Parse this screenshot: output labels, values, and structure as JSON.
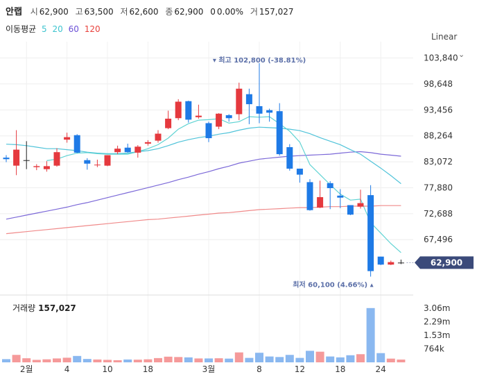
{
  "header": {
    "name": "안랩",
    "open_label": "시",
    "open": "62,900",
    "high_label": "고",
    "high": "63,500",
    "low_label": "저",
    "low": "62,600",
    "close_label": "종",
    "close": "62,900",
    "change": "0",
    "change_pct": "0.00%",
    "volume_label": "거",
    "volume": "157,027"
  },
  "ma_legend": {
    "title": "이동평균",
    "periods": [
      {
        "label": "5",
        "color": "#3ec4cf"
      },
      {
        "label": "20",
        "color": "#3ec4cf"
      },
      {
        "label": "60",
        "color": "#6a4fd6"
      },
      {
        "label": "120",
        "color": "#e8413c"
      }
    ]
  },
  "scale_mode": "Linear",
  "colors": {
    "up": "#e5393e",
    "down": "#1e7ae6",
    "ma5": "#5fd3d3",
    "ma20": "#4fc3d9",
    "ma60": "#7b68d8",
    "ma120": "#f08a8a",
    "vol_up": "#f59a9a",
    "vol_down": "#8ab8f0",
    "current_tag": "#3b4a7a"
  },
  "current_price_tag": "62,900",
  "annotations": {
    "high": "최고 102,800 (-38.81%)",
    "low": "최저 60,100 (4.66%)"
  },
  "volume_panel": {
    "label": "거래량",
    "value": "157,027",
    "ticks": [
      "3.06m",
      "2.29m",
      "1.53m",
      "764k"
    ]
  },
  "chart_data": {
    "type": "candlestick",
    "ylim": [
      58500,
      106000
    ],
    "y_ticks": [
      "103,840",
      "98,648",
      "93,456",
      "88,264",
      "83,072",
      "77,880",
      "72,688",
      "67,496"
    ],
    "x_ticks": [
      "2월",
      "4",
      "10",
      "18",
      "3월",
      "8",
      "12",
      "18",
      "24"
    ],
    "x_tick_index": [
      2,
      6,
      10,
      14,
      20,
      25,
      29,
      33,
      37
    ],
    "candles": [
      {
        "o": 83900,
        "h": 84400,
        "c": 83600,
        "l": 83000
      },
      {
        "o": 82300,
        "h": 89400,
        "c": 85500,
        "l": 80400
      },
      {
        "o": 83400,
        "h": 87200,
        "c": 83400,
        "l": 81600
      },
      {
        "o": 82000,
        "h": 82600,
        "c": 82200,
        "l": 81400
      },
      {
        "o": 81600,
        "h": 83200,
        "c": 82200,
        "l": 81100
      },
      {
        "o": 82300,
        "h": 85800,
        "c": 85000,
        "l": 82100
      },
      {
        "o": 87500,
        "h": 88900,
        "c": 88000,
        "l": 86900
      },
      {
        "o": 88400,
        "h": 88600,
        "c": 84900,
        "l": 84800
      },
      {
        "o": 83400,
        "h": 83800,
        "c": 82700,
        "l": 81500
      },
      {
        "o": 82400,
        "h": 83500,
        "c": 82500,
        "l": 82000
      },
      {
        "o": 82300,
        "h": 84400,
        "c": 84400,
        "l": 82200
      },
      {
        "o": 85000,
        "h": 86300,
        "c": 85700,
        "l": 84600
      },
      {
        "o": 85900,
        "h": 86700,
        "c": 85000,
        "l": 84900
      },
      {
        "o": 84900,
        "h": 86400,
        "c": 86100,
        "l": 83900
      },
      {
        "o": 86700,
        "h": 87400,
        "c": 87000,
        "l": 86300
      },
      {
        "o": 87300,
        "h": 89400,
        "c": 88700,
        "l": 86900
      },
      {
        "o": 89800,
        "h": 93300,
        "c": 91700,
        "l": 89600
      },
      {
        "o": 91800,
        "h": 95600,
        "c": 95100,
        "l": 91400
      },
      {
        "o": 95200,
        "h": 95300,
        "c": 91500,
        "l": 90900
      },
      {
        "o": 92000,
        "h": 94500,
        "c": 92300,
        "l": 91700
      },
      {
        "o": 90800,
        "h": 91100,
        "c": 87800,
        "l": 87000
      },
      {
        "o": 90100,
        "h": 92800,
        "c": 92700,
        "l": 89600
      },
      {
        "o": 92400,
        "h": 92600,
        "c": 91800,
        "l": 91100
      },
      {
        "o": 92600,
        "h": 98900,
        "c": 97700,
        "l": 91400
      },
      {
        "o": 96600,
        "h": 97700,
        "c": 94600,
        "l": 90600
      },
      {
        "o": 94200,
        "h": 102800,
        "c": 92700,
        "l": 90800
      },
      {
        "o": 93400,
        "h": 93700,
        "c": 92900,
        "l": 91100
      },
      {
        "o": 93200,
        "h": 94800,
        "c": 84600,
        "l": 84300
      },
      {
        "o": 86000,
        "h": 86600,
        "c": 81700,
        "l": 81300
      },
      {
        "o": 81700,
        "h": 81700,
        "c": 80500,
        "l": 78900
      },
      {
        "o": 79000,
        "h": 79600,
        "c": 73400,
        "l": 73300
      },
      {
        "o": 73900,
        "h": 79300,
        "c": 76000,
        "l": 73800
      },
      {
        "o": 78800,
        "h": 79200,
        "c": 77800,
        "l": 73600
      },
      {
        "o": 76300,
        "h": 77600,
        "c": 75900,
        "l": 73800
      },
      {
        "o": 74400,
        "h": 74400,
        "c": 72500,
        "l": 72400
      },
      {
        "o": 74100,
        "h": 77500,
        "c": 74800,
        "l": 73700
      },
      {
        "o": 76400,
        "h": 78400,
        "c": 61200,
        "l": 60100
      },
      {
        "o": 64100,
        "h": 64100,
        "c": 62500,
        "l": 62400
      },
      {
        "o": 62500,
        "h": 63300,
        "c": 63000,
        "l": 62400
      },
      {
        "o": 62900,
        "h": 63500,
        "c": 62900,
        "l": 62600
      }
    ],
    "ma5": [
      null,
      null,
      null,
      null,
      83300,
      83600,
      84300,
      84800,
      84900,
      84700,
      84600,
      84600,
      84600,
      85100,
      85700,
      86500,
      87800,
      89600,
      90700,
      91400,
      91500,
      91700,
      90800,
      91100,
      92100,
      92000,
      92100,
      90700,
      89200,
      87000,
      82500,
      80500,
      78500,
      76600,
      75400,
      75600,
      70900,
      68800,
      66700,
      64900
    ],
    "ma20": [
      86600,
      86500,
      86300,
      86000,
      85700,
      85700,
      85500,
      85300,
      85000,
      84800,
      84700,
      84700,
      84800,
      85100,
      85300,
      85700,
      86300,
      87000,
      87500,
      87900,
      88200,
      88600,
      88900,
      89400,
      89800,
      90000,
      89900,
      89800,
      89600,
      89300,
      88700,
      87900,
      87200,
      86500,
      85500,
      84600,
      83200,
      81800,
      80300,
      78700
    ],
    "ma60": [
      71600,
      72000,
      72400,
      72800,
      73200,
      73600,
      74000,
      74500,
      74900,
      75400,
      75900,
      76400,
      76900,
      77400,
      77900,
      78400,
      78900,
      79500,
      80000,
      80600,
      81100,
      81700,
      82200,
      82800,
      83200,
      83600,
      83800,
      84000,
      84200,
      84300,
      84400,
      84500,
      84600,
      84800,
      85000,
      85100,
      84900,
      84600,
      84400,
      84200
    ],
    "ma120": [
      68700,
      68900,
      69100,
      69300,
      69500,
      69700,
      69900,
      70100,
      70300,
      70500,
      70700,
      70900,
      71100,
      71300,
      71500,
      71600,
      71800,
      72000,
      72200,
      72400,
      72600,
      72800,
      72900,
      73100,
      73300,
      73500,
      73600,
      73700,
      73800,
      73900,
      73900,
      74000,
      74100,
      74100,
      74200,
      74200,
      74200,
      74300,
      74300,
      74300
    ],
    "volume_ylim": [
      0,
      3600000
    ],
    "volumes": [
      180000,
      420000,
      230000,
      140000,
      170000,
      220000,
      260000,
      360000,
      190000,
      160000,
      140000,
      120000,
      160000,
      150000,
      170000,
      240000,
      320000,
      300000,
      280000,
      220000,
      220000,
      230000,
      210000,
      560000,
      250000,
      540000,
      330000,
      300000,
      420000,
      250000,
      650000,
      600000,
      330000,
      280000,
      400000,
      460000,
      3060000,
      520000,
      210000,
      157027
    ]
  }
}
